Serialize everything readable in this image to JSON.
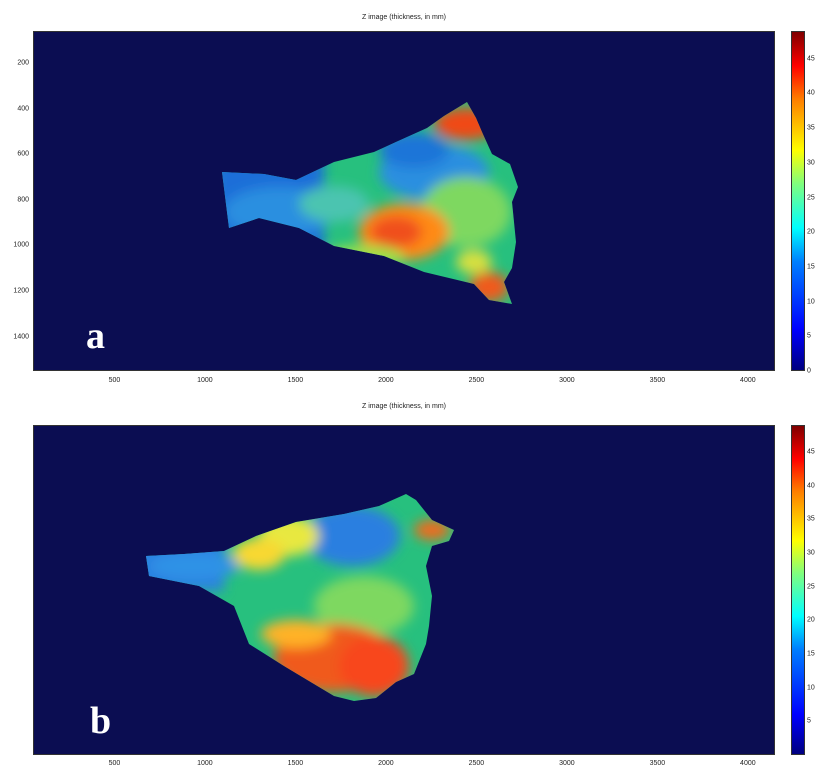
{
  "chart_data": [
    {
      "type": "heatmap",
      "panel_label": "a",
      "title": "Z image (thickness, in mm)",
      "x_ticks": [
        500,
        1000,
        1500,
        2000,
        2500,
        3000,
        3500,
        4000
      ],
      "y_ticks": [
        200,
        400,
        600,
        800,
        1000,
        1200,
        1400
      ],
      "xlim": [
        50,
        4150
      ],
      "ylim": [
        1550,
        60
      ],
      "colorbar": {
        "ticks": [
          0,
          5,
          10,
          15,
          20,
          25,
          30,
          35,
          40,
          45
        ],
        "range": [
          0,
          49
        ]
      },
      "background_color": "#0b0d52"
    },
    {
      "type": "heatmap",
      "panel_label": "b",
      "title": "Z image (thickness, in mm)",
      "x_ticks": [
        500,
        1000,
        1500,
        2000,
        2500,
        3000,
        3500,
        4000
      ],
      "y_ticks": [],
      "xlim": [
        50,
        4150
      ],
      "colorbar": {
        "ticks": [
          5,
          10,
          15,
          20,
          25,
          30,
          35,
          40,
          45
        ],
        "range": [
          0,
          49
        ]
      },
      "background_color": "#0b0d52"
    }
  ]
}
